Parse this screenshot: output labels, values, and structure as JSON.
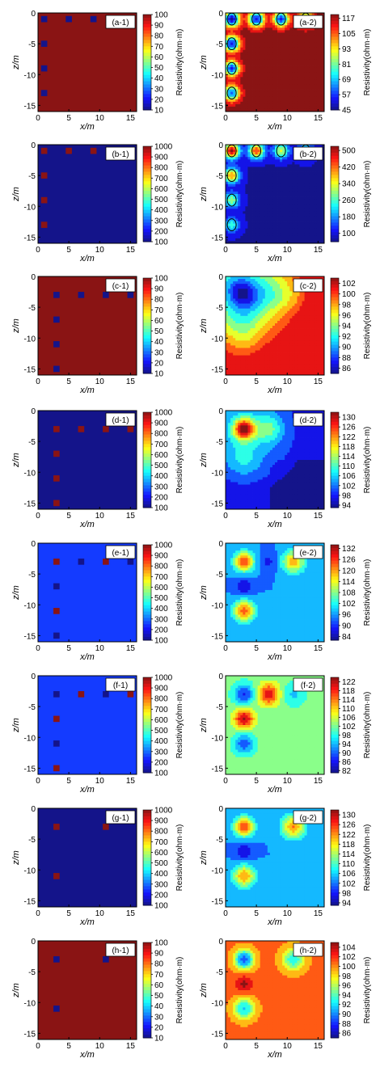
{
  "chart_data": [
    {
      "id": "a-1",
      "type": "heatmap",
      "title": "(a-1)",
      "xlabel": "x/m",
      "ylabel": "z/m",
      "xlim": [
        0,
        16
      ],
      "ylim": [
        -16,
        0
      ],
      "xticks": [
        0,
        5,
        10,
        15
      ],
      "yticks": [
        0,
        -5,
        -10,
        -15
      ],
      "colorbar": {
        "label": "Resistivity(ohm·m)",
        "ticks": [
          100,
          90,
          80,
          70,
          60,
          50,
          40,
          30,
          20,
          10
        ],
        "range": [
          10,
          100
        ]
      },
      "background_value": 100,
      "anomaly_value": 10,
      "anomalies": [
        {
          "x": 1,
          "z": -1
        },
        {
          "x": 5,
          "z": -1
        },
        {
          "x": 9,
          "z": -1
        },
        {
          "x": 1,
          "z": -5
        },
        {
          "x": 1,
          "z": -9
        },
        {
          "x": 1,
          "z": -13
        }
      ]
    },
    {
      "id": "a-2",
      "type": "heatmap",
      "title": "(a-2)",
      "xlabel": "x/m",
      "ylabel": "z/m",
      "xlim": [
        0,
        16
      ],
      "ylim": [
        -16,
        0
      ],
      "xticks": [
        0,
        5,
        10,
        15
      ],
      "yticks": [
        0,
        -5,
        -10,
        -15
      ],
      "colorbar": {
        "label": "Resistivity(ohm·m)",
        "ticks": [
          117,
          105,
          93,
          81,
          69,
          57,
          45
        ],
        "range": [
          45,
          120
        ]
      },
      "background_value": 120,
      "lows": [
        {
          "x": 1,
          "z": -1,
          "v": 45
        },
        {
          "x": 5,
          "z": -1,
          "v": 50
        },
        {
          "x": 9,
          "z": -1,
          "v": 55
        },
        {
          "x": 13,
          "z": -1,
          "v": 70
        },
        {
          "x": 1,
          "z": -5,
          "v": 50
        },
        {
          "x": 1,
          "z": -9,
          "v": 55
        },
        {
          "x": 1,
          "z": -13,
          "v": 60
        }
      ]
    },
    {
      "id": "b-1",
      "type": "heatmap",
      "title": "(b-1)",
      "xlabel": "x/m",
      "ylabel": "z/m",
      "xlim": [
        0,
        16
      ],
      "ylim": [
        -16,
        0
      ],
      "xticks": [
        0,
        5,
        10,
        15
      ],
      "yticks": [
        0,
        -5,
        -10,
        -15
      ],
      "colorbar": {
        "label": "Resistivity(ohm·m)",
        "ticks": [
          1000,
          900,
          800,
          700,
          600,
          500,
          400,
          300,
          200,
          100
        ],
        "range": [
          100,
          1000
        ]
      },
      "background_value": 100,
      "anomaly_value": 1000,
      "anomalies": [
        {
          "x": 1,
          "z": -1
        },
        {
          "x": 5,
          "z": -1
        },
        {
          "x": 9,
          "z": -1
        },
        {
          "x": 1,
          "z": -5
        },
        {
          "x": 1,
          "z": -9
        },
        {
          "x": 1,
          "z": -13
        }
      ]
    },
    {
      "id": "b-2",
      "type": "heatmap",
      "title": "(b-2)",
      "xlabel": "x/m",
      "ylabel": "z/m",
      "xlim": [
        0,
        16
      ],
      "ylim": [
        -16,
        0
      ],
      "xticks": [
        0,
        5,
        10,
        15
      ],
      "yticks": [
        0,
        -5,
        -10,
        -15
      ],
      "colorbar": {
        "label": "Resistivity(ohm·m)",
        "ticks": [
          500,
          420,
          340,
          260,
          180,
          100
        ],
        "range": [
          60,
          520
        ]
      },
      "background_value": 80,
      "highs": [
        {
          "x": 1,
          "z": -1,
          "v": 520
        },
        {
          "x": 5,
          "z": -1,
          "v": 450
        },
        {
          "x": 9,
          "z": -1,
          "v": 330
        },
        {
          "x": 13,
          "z": -1,
          "v": 260
        },
        {
          "x": 1,
          "z": -5,
          "v": 400
        },
        {
          "x": 1,
          "z": -9,
          "v": 300
        },
        {
          "x": 1,
          "z": -13,
          "v": 240
        }
      ]
    },
    {
      "id": "c-1",
      "type": "heatmap",
      "title": "(c-1)",
      "xlabel": "x/m",
      "ylabel": "z/m",
      "xlim": [
        0,
        16
      ],
      "ylim": [
        -16,
        0
      ],
      "xticks": [
        0,
        5,
        10,
        15
      ],
      "yticks": [
        0,
        -5,
        -10,
        -15
      ],
      "colorbar": {
        "label": "Resistivity(ohm·m)",
        "ticks": [
          100,
          90,
          80,
          70,
          60,
          50,
          40,
          30,
          20,
          10
        ],
        "range": [
          10,
          100
        ]
      },
      "background_value": 100,
      "anomaly_value": 10,
      "anomalies": [
        {
          "x": 3,
          "z": -3
        },
        {
          "x": 7,
          "z": -3
        },
        {
          "x": 11,
          "z": -3
        },
        {
          "x": 15,
          "z": -3
        },
        {
          "x": 3,
          "z": -7
        },
        {
          "x": 3,
          "z": -11
        },
        {
          "x": 3,
          "z": -15
        }
      ]
    },
    {
      "id": "c-2",
      "type": "heatmap",
      "title": "(c-2)",
      "xlabel": "x/m",
      "ylabel": "z/m",
      "xlim": [
        0,
        16
      ],
      "ylim": [
        -16,
        0
      ],
      "xticks": [
        0,
        5,
        10,
        15
      ],
      "yticks": [
        0,
        -5,
        -10,
        -15
      ],
      "colorbar": {
        "label": "Resistivity(ohm·m)",
        "ticks": [
          102,
          100,
          98,
          96,
          94,
          92,
          90,
          88,
          86
        ],
        "range": [
          85,
          103
        ]
      }
    },
    {
      "id": "d-1",
      "type": "heatmap",
      "title": "(d-1)",
      "xlabel": "x/m",
      "ylabel": "z/m",
      "xlim": [
        0,
        16
      ],
      "ylim": [
        -16,
        0
      ],
      "xticks": [
        0,
        5,
        10,
        15
      ],
      "yticks": [
        0,
        -5,
        -10,
        -15
      ],
      "colorbar": {
        "label": "Resistivity(ohm·m)",
        "ticks": [
          1000,
          900,
          800,
          700,
          600,
          500,
          400,
          300,
          200,
          100
        ],
        "range": [
          100,
          1000
        ]
      },
      "background_value": 100,
      "anomaly_value": 1000,
      "anomalies": [
        {
          "x": 3,
          "z": -3
        },
        {
          "x": 7,
          "z": -3
        },
        {
          "x": 11,
          "z": -3
        },
        {
          "x": 15,
          "z": -3
        },
        {
          "x": 3,
          "z": -7
        },
        {
          "x": 3,
          "z": -11
        },
        {
          "x": 3,
          "z": -15
        }
      ]
    },
    {
      "id": "d-2",
      "type": "heatmap",
      "title": "(d-2)",
      "xlabel": "x/m",
      "ylabel": "z/m",
      "xlim": [
        0,
        16
      ],
      "ylim": [
        -16,
        0
      ],
      "xticks": [
        0,
        5,
        10,
        15
      ],
      "yticks": [
        0,
        -5,
        -10,
        -15
      ],
      "colorbar": {
        "label": "Resistivity(ohm·m)",
        "ticks": [
          130,
          126,
          122,
          118,
          114,
          110,
          106,
          102,
          98,
          94
        ],
        "range": [
          93,
          132
        ]
      }
    },
    {
      "id": "e-1",
      "type": "heatmap",
      "title": "(e-1)",
      "xlabel": "x/m",
      "ylabel": "z/m",
      "xlim": [
        0,
        16
      ],
      "ylim": [
        -16,
        0
      ],
      "xticks": [
        0,
        5,
        10,
        15
      ],
      "yticks": [
        0,
        -5,
        -10,
        -15
      ],
      "colorbar": {
        "label": "Resistivity(ohm·m)",
        "ticks": [
          1000,
          900,
          800,
          700,
          600,
          500,
          400,
          300,
          200,
          100
        ],
        "range": [
          100,
          1000
        ]
      },
      "background_value": 250,
      "cells": [
        {
          "x": 3,
          "z": -3,
          "v": 1000
        },
        {
          "x": 7,
          "z": -3,
          "v": 100
        },
        {
          "x": 11,
          "z": -3,
          "v": 1000
        },
        {
          "x": 15,
          "z": -3,
          "v": 100
        },
        {
          "x": 3,
          "z": -7,
          "v": 100
        },
        {
          "x": 3,
          "z": -11,
          "v": 1000
        },
        {
          "x": 3,
          "z": -15,
          "v": 100
        }
      ]
    },
    {
      "id": "e-2",
      "type": "heatmap",
      "title": "(e-2)",
      "xlabel": "x/m",
      "ylabel": "z/m",
      "xlim": [
        0,
        16
      ],
      "ylim": [
        -16,
        0
      ],
      "xticks": [
        0,
        5,
        10,
        15
      ],
      "yticks": [
        0,
        -5,
        -10,
        -15
      ],
      "colorbar": {
        "label": "Resistivity(ohm·m)",
        "ticks": [
          132,
          126,
          120,
          114,
          108,
          102,
          96,
          90,
          84
        ],
        "range": [
          82,
          134
        ]
      }
    },
    {
      "id": "f-1",
      "type": "heatmap",
      "title": "(f-1)",
      "xlabel": "x/m",
      "ylabel": "z/m",
      "xlim": [
        0,
        16
      ],
      "ylim": [
        -16,
        0
      ],
      "xticks": [
        0,
        5,
        10,
        15
      ],
      "yticks": [
        0,
        -5,
        -10,
        -15
      ],
      "colorbar": {
        "label": "Resistivity(ohm·m)",
        "ticks": [
          1000,
          900,
          800,
          700,
          600,
          500,
          400,
          300,
          200,
          100
        ],
        "range": [
          100,
          1000
        ]
      },
      "background_value": 250,
      "cells": [
        {
          "x": 3,
          "z": -3,
          "v": 100
        },
        {
          "x": 7,
          "z": -3,
          "v": 1000
        },
        {
          "x": 11,
          "z": -3,
          "v": 100
        },
        {
          "x": 15,
          "z": -3,
          "v": 1000
        },
        {
          "x": 3,
          "z": -7,
          "v": 1000
        },
        {
          "x": 3,
          "z": -11,
          "v": 100
        },
        {
          "x": 3,
          "z": -15,
          "v": 1000
        }
      ]
    },
    {
      "id": "f-2",
      "type": "heatmap",
      "title": "(f-2)",
      "xlabel": "x/m",
      "ylabel": "z/m",
      "xlim": [
        0,
        16
      ],
      "ylim": [
        -16,
        0
      ],
      "xticks": [
        0,
        5,
        10,
        15
      ],
      "yticks": [
        0,
        -5,
        -10,
        -15
      ],
      "colorbar": {
        "label": "Resistivity(ohm·m)",
        "ticks": [
          122,
          118,
          114,
          110,
          106,
          102,
          98,
          94,
          90,
          86,
          82
        ],
        "range": [
          81,
          124
        ]
      }
    },
    {
      "id": "g-1",
      "type": "heatmap",
      "title": "(g-1)",
      "xlabel": "x/m",
      "ylabel": "z/m",
      "xlim": [
        0,
        16
      ],
      "ylim": [
        -16,
        0
      ],
      "xticks": [
        0,
        5,
        10,
        15
      ],
      "yticks": [
        0,
        -5,
        -10,
        -15
      ],
      "colorbar": {
        "label": "Resistivity(ohm·m)",
        "ticks": [
          1000,
          900,
          800,
          700,
          600,
          500,
          400,
          300,
          200,
          100
        ],
        "range": [
          100,
          1000
        ]
      },
      "background_value": 100,
      "anomaly_value": 1000,
      "anomalies": [
        {
          "x": 3,
          "z": -3
        },
        {
          "x": 11,
          "z": -3
        },
        {
          "x": 3,
          "z": -11
        }
      ]
    },
    {
      "id": "g-2",
      "type": "heatmap",
      "title": "(g-2)",
      "xlabel": "x/m",
      "ylabel": "z/m",
      "xlim": [
        0,
        16
      ],
      "ylim": [
        -16,
        0
      ],
      "xticks": [
        0,
        5,
        10,
        15
      ],
      "yticks": [
        0,
        -5,
        -10,
        -15
      ],
      "colorbar": {
        "label": "Resistivity(ohm·m)",
        "ticks": [
          130,
          126,
          122,
          118,
          114,
          110,
          106,
          102,
          98,
          94
        ],
        "range": [
          93,
          132
        ]
      }
    },
    {
      "id": "h-1",
      "type": "heatmap",
      "title": "(h-1)",
      "xlabel": "x/m",
      "ylabel": "z/m",
      "xlim": [
        0,
        16
      ],
      "ylim": [
        -16,
        0
      ],
      "xticks": [
        0,
        5,
        10,
        15
      ],
      "yticks": [
        0,
        -5,
        -10,
        -15
      ],
      "colorbar": {
        "label": "Resistivity(ohm·m)",
        "ticks": [
          100,
          90,
          80,
          70,
          60,
          50,
          40,
          30,
          20,
          10
        ],
        "range": [
          10,
          100
        ]
      },
      "background_value": 100,
      "anomaly_value": 10,
      "anomalies": [
        {
          "x": 3,
          "z": -3
        },
        {
          "x": 11,
          "z": -3
        },
        {
          "x": 3,
          "z": -11
        }
      ]
    },
    {
      "id": "h-2",
      "type": "heatmap",
      "title": "(h-2)",
      "xlabel": "x/m",
      "ylabel": "z/m",
      "xlim": [
        0,
        16
      ],
      "ylim": [
        -16,
        0
      ],
      "xticks": [
        0,
        5,
        10,
        15
      ],
      "yticks": [
        0,
        -5,
        -10,
        -15
      ],
      "colorbar": {
        "label": "Resistivity(ohm·m)",
        "ticks": [
          104,
          102,
          100,
          98,
          96,
          94,
          92,
          90,
          88,
          86
        ],
        "range": [
          85,
          105
        ]
      }
    }
  ]
}
